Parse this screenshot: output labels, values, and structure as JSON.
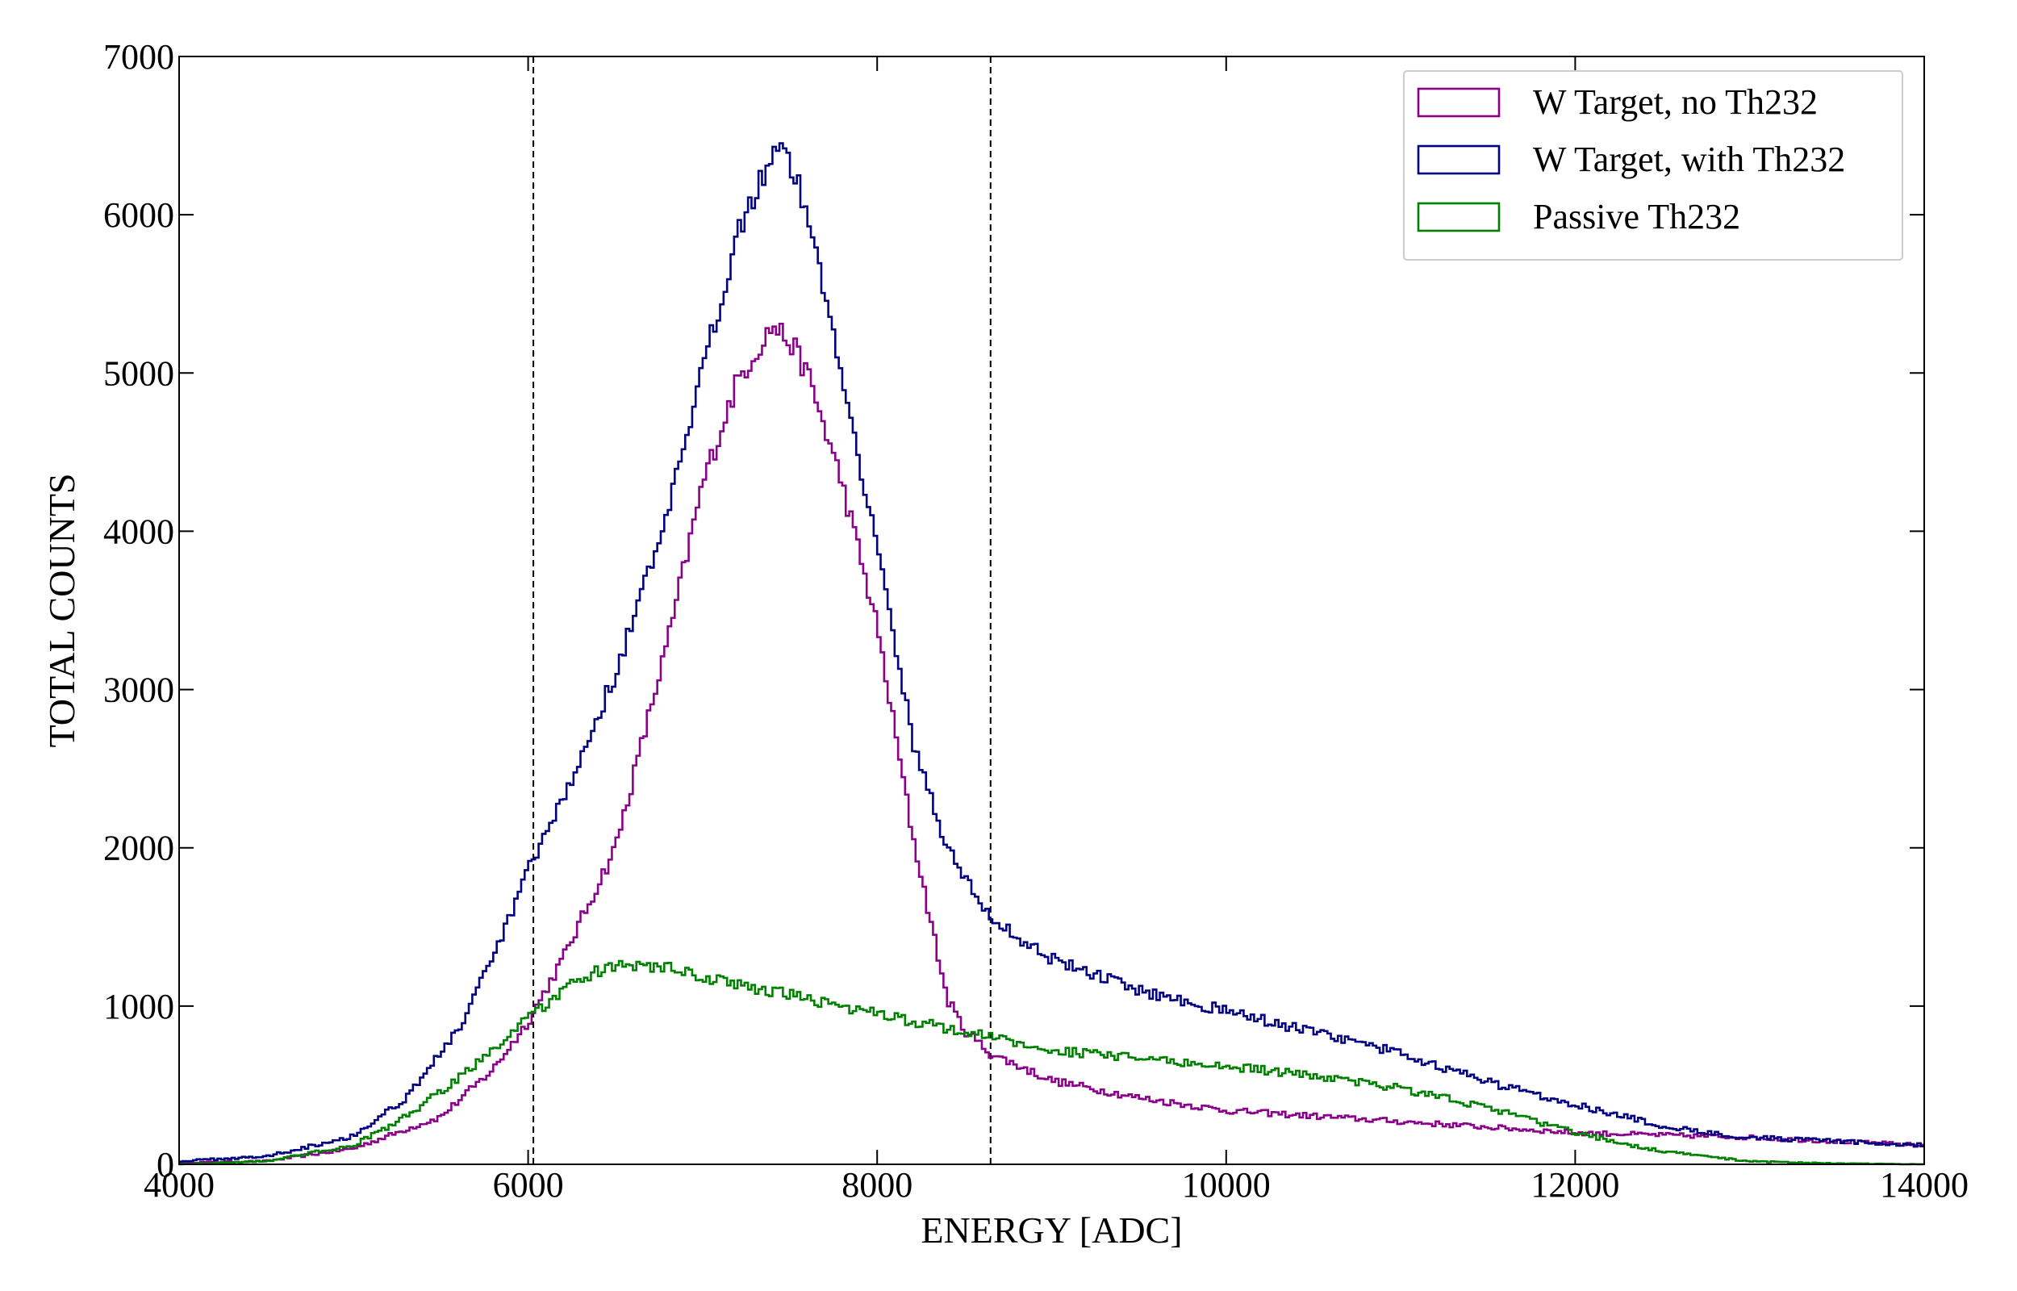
{
  "chart_data": {
    "type": "histogram-step",
    "title": "",
    "xlabel": "ENERGY [ADC]",
    "ylabel": "TOTAL COUNTS",
    "xlim": [
      4000,
      14000
    ],
    "ylim": [
      0,
      7000
    ],
    "xticks": [
      4000,
      6000,
      8000,
      10000,
      12000,
      14000
    ],
    "yticks": [
      0,
      1000,
      2000,
      3000,
      4000,
      5000,
      6000,
      7000
    ],
    "grid": false,
    "legend_position": "top-right",
    "vlines": [
      6030,
      8650
    ],
    "series": [
      {
        "name": "W Target, no Th232",
        "color": "#8b008b",
        "x": [
          4000,
          4500,
          5000,
          5500,
          5800,
          6000,
          6200,
          6500,
          6800,
          7000,
          7200,
          7400,
          7500,
          7600,
          7800,
          8000,
          8200,
          8400,
          8500,
          8650,
          9000,
          9500,
          10000,
          11000,
          12000,
          13000,
          14000
        ],
        "counts": [
          10,
          20,
          100,
          300,
          600,
          900,
          1300,
          2000,
          3300,
          4300,
          4950,
          5300,
          5200,
          5000,
          4300,
          3400,
          2100,
          1050,
          850,
          700,
          530,
          420,
          340,
          270,
          200,
          170,
          120
        ]
      },
      {
        "name": "W Target, with Th232",
        "color": "#000080",
        "x": [
          4000,
          4500,
          5000,
          5300,
          5600,
          5800,
          6000,
          6200,
          6500,
          6800,
          7000,
          7200,
          7400,
          7500,
          7600,
          7800,
          8000,
          8200,
          8400,
          8650,
          9000,
          9500,
          10000,
          11000,
          11500,
          12000,
          12500,
          13000,
          14000
        ],
        "counts": [
          20,
          50,
          180,
          420,
          850,
          1300,
          1850,
          2300,
          3100,
          4100,
          5000,
          5900,
          6400,
          6350,
          6000,
          5000,
          3900,
          2700,
          2000,
          1550,
          1300,
          1100,
          970,
          700,
          520,
          380,
          240,
          170,
          120
        ]
      },
      {
        "name": "Passive Th232",
        "color": "#008000",
        "x": [
          4000,
          4500,
          5000,
          5300,
          5600,
          5800,
          6000,
          6200,
          6400,
          6600,
          6800,
          7000,
          7500,
          8000,
          8500,
          9000,
          9500,
          10000,
          10500,
          11000,
          11500,
          12000,
          12500,
          13000,
          13500,
          14000
        ],
        "counts": [
          0,
          20,
          120,
          300,
          540,
          730,
          920,
          1100,
          1220,
          1260,
          1240,
          1180,
          1070,
          950,
          840,
          720,
          670,
          620,
          560,
          480,
          360,
          200,
          80,
          20,
          5,
          0
        ]
      }
    ]
  }
}
